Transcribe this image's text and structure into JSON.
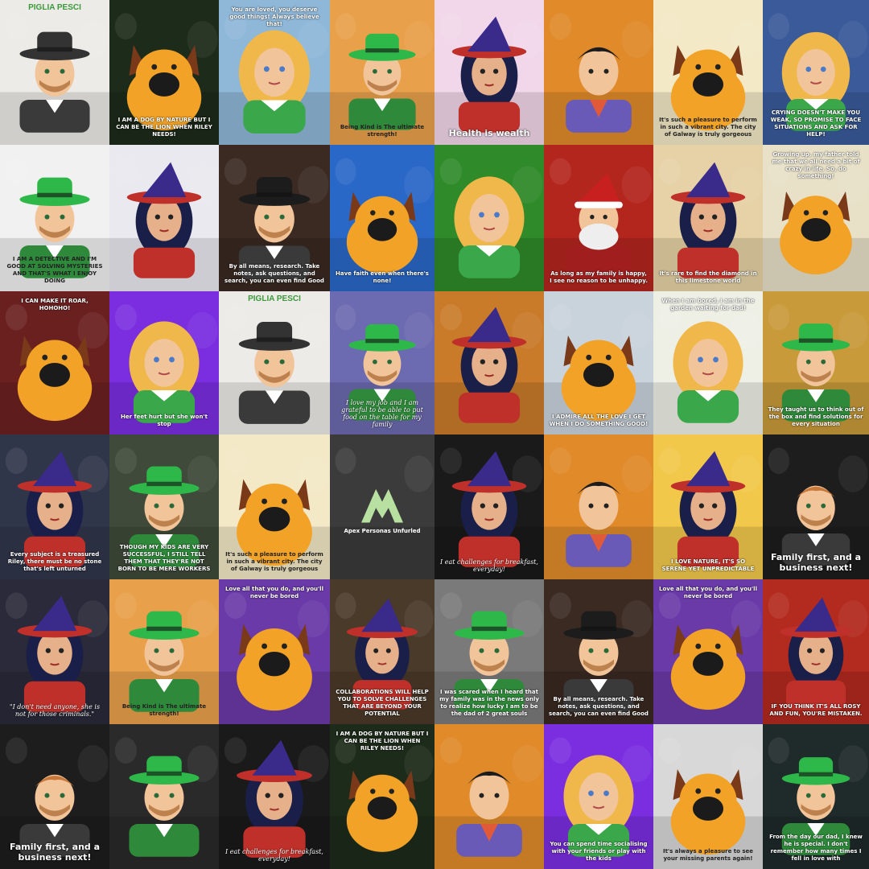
{
  "tiles": [
    {
      "kind": "man",
      "hat": "#333333",
      "bg": "#ecebe7",
      "banner": "PIGLIA PESCI",
      "caption": "",
      "capStyle": ""
    },
    {
      "kind": "dog",
      "bg": "#1d2b1a",
      "caption": "I AM A DOG BY NATURE BUT I CAN BE THE LION WHEN RILEY NEEDS!",
      "capStyle": ""
    },
    {
      "kind": "girl",
      "bg": "#8fb7d8",
      "caption": "You are loved, you deserve good things! Always believe that!",
      "capStyle": "top"
    },
    {
      "kind": "man",
      "hat": "#2fb84a",
      "bg": "#e9a04a",
      "caption": "Being Kind is The ultimate strength!",
      "capStyle": "dark"
    },
    {
      "kind": "witch",
      "bg": "#f2d7ea",
      "caption": "Health is wealth",
      "capStyle": "big"
    },
    {
      "kind": "boy",
      "bg": "#e08a2a",
      "caption": "",
      "capStyle": ""
    },
    {
      "kind": "dog",
      "bg": "#f3e9c6",
      "caption": "It's such a pleasure to perform in such a vibrant city. The city of Galway is truly gorgeous",
      "capStyle": "dark"
    },
    {
      "kind": "girl",
      "bg": "#3a5a9a",
      "caption": "CRYING DOESN'T MAKE YOU WEAK, SO PROMISE TO FACE SITUATIONS AND ASK FOR HELP!",
      "capStyle": ""
    },
    {
      "kind": "man",
      "hat": "#2fb84a",
      "bg": "#f1f1f1",
      "caption": "I AM A DETECTIVE AND I'M GOOD AT SOLVING MYSTERIES AND THAT'S WHAT I ENJOY DOING",
      "capStyle": "dark"
    },
    {
      "kind": "witch",
      "bg": "#e9e9ef",
      "caption": "",
      "capStyle": ""
    },
    {
      "kind": "man",
      "hat": "#1c1c1c",
      "bg": "#3a2a22",
      "caption": "By all means, research. Take notes, ask questions, and search, you can even find Good",
      "capStyle": ""
    },
    {
      "kind": "dog",
      "bg": "#2a68c8",
      "caption": "Have faith even when there's none!",
      "capStyle": ""
    },
    {
      "kind": "girl",
      "bg": "#2f8a2a",
      "caption": "",
      "capStyle": ""
    },
    {
      "kind": "santa",
      "bg": "#b3261e",
      "caption": "As long as my family is happy, I see no reason to be unhappy.",
      "capStyle": ""
    },
    {
      "kind": "witch",
      "bg": "#e6d2a6",
      "caption": "It's rare to find the diamond in this limestone world",
      "capStyle": ""
    },
    {
      "kind": "dog",
      "bg": "#e8e1c8",
      "caption": "Growing up, my father told me that we all need a bit of crazy in life. So, do something!",
      "capStyle": "top"
    },
    {
      "kind": "dog",
      "bg": "#6b2020",
      "caption": "I CAN MAKE IT ROAR, HOHOHO!",
      "capStyle": "top"
    },
    {
      "kind": "girl",
      "bg": "#7a2ee0",
      "caption": "Her feet hurt but she won't stop",
      "capStyle": ""
    },
    {
      "kind": "man",
      "hat": "#333333",
      "bg": "#ecebe7",
      "banner": "PIGLIA PESCI",
      "caption": "",
      "capStyle": ""
    },
    {
      "kind": "man",
      "hat": "#2fb84a",
      "bg": "#6c6ab0",
      "caption": "I love my job and I am grateful to be able to put food on the table for my family",
      "capStyle": "script"
    },
    {
      "kind": "witch",
      "bg": "#c97b2a",
      "caption": "",
      "capStyle": ""
    },
    {
      "kind": "dog",
      "bg": "#c9d3dc",
      "caption": "I ADMIRE ALL THE LOVE I GET WHEN I DO SOMETHING GOOD!",
      "capStyle": ""
    },
    {
      "kind": "girl",
      "bg": "#eef0e6",
      "caption": "When I am bored, I am in the garden waiting for dad!",
      "capStyle": "top"
    },
    {
      "kind": "man",
      "hat": "#2fb84a",
      "bg": "#c89a3a",
      "caption": "They taught us to think out of the box and find solutions for every situation",
      "capStyle": ""
    },
    {
      "kind": "witch",
      "bg": "#30364a",
      "caption": "Every subject is a treasured Riley, there must be no stone that's left unturned",
      "capStyle": ""
    },
    {
      "kind": "man",
      "hat": "#2fb84a",
      "bg": "#3f4a3a",
      "caption": "THOUGH MY KIDS ARE VERY SUCCESSFUL, I STILL TELL THEM THAT THEY'RE NOT BORN TO BE MERE WORKERS",
      "capStyle": ""
    },
    {
      "kind": "dog",
      "bg": "#f3e9c6",
      "caption": "It's such a pleasure to perform in such a vibrant city. The city of Galway is truly gorgeous",
      "capStyle": "dark"
    },
    {
      "kind": "logo",
      "bg": "#3b3b3b",
      "title": "Apex Personas Unfurled",
      "caption": "",
      "capStyle": ""
    },
    {
      "kind": "witch",
      "bg": "#1a1a1a",
      "caption": "I eat challenges for breakfast, everyday!",
      "capStyle": "script"
    },
    {
      "kind": "boy",
      "bg": "#e08a2a",
      "caption": "",
      "capStyle": ""
    },
    {
      "kind": "witch",
      "bg": "#f2c84a",
      "caption": "I LOVE NATURE, IT'S SO SERENE YET UNPREDICTABLE",
      "capStyle": ""
    },
    {
      "kind": "man",
      "hat": "none",
      "bg": "#1d1d1d",
      "caption": "Family first, and a business next!",
      "capStyle": "big"
    },
    {
      "kind": "witch",
      "bg": "#2a2a3a",
      "caption": "\"I don't need anyone, she is not for those criminals.\"",
      "capStyle": "script"
    },
    {
      "kind": "man",
      "hat": "#2fb84a",
      "bg": "#e9a04a",
      "caption": "Being Kind is The ultimate strength!",
      "capStyle": "dark"
    },
    {
      "kind": "dog",
      "bg": "#6a3aa8",
      "caption": "Love all that you do, and you'll never be bored",
      "capStyle": "top"
    },
    {
      "kind": "witch",
      "bg": "#4a3a2a",
      "caption": "COLLABORATIONS WILL HELP YOU TO SOLVE CHALLENGES THAT ARE BEYOND YOUR POTENTIAL",
      "capStyle": ""
    },
    {
      "kind": "man",
      "hat": "#2fb84a",
      "bg": "#7a7a7a",
      "caption": "I was scared when I heard that my family was in the news only to realize how lucky I am to be the dad of 2 great souls",
      "capStyle": ""
    },
    {
      "kind": "man",
      "hat": "#1c1c1c",
      "bg": "#3a2a22",
      "caption": "By all means, research. Take notes, ask questions, and search, you can even find Good",
      "capStyle": ""
    },
    {
      "kind": "dog",
      "bg": "#6a3aa8",
      "caption": "Love all that you do, and you'll never be bored",
      "capStyle": "top"
    },
    {
      "kind": "witch",
      "bg": "#b32a1e",
      "caption": "IF YOU THINK IT'S ALL ROSY AND FUN, YOU'RE MISTAKEN.",
      "capStyle": ""
    },
    {
      "kind": "man",
      "hat": "none",
      "bg": "#1d1d1d",
      "caption": "Family first, and a business next!",
      "capStyle": "big"
    },
    {
      "kind": "man",
      "hat": "#2fb84a",
      "bg": "#2a2a2a",
      "caption": "",
      "capStyle": ""
    },
    {
      "kind": "witch",
      "bg": "#1a1a1a",
      "caption": "I eat challenges for breakfast, everyday!",
      "capStyle": "script"
    },
    {
      "kind": "dog",
      "bg": "#1d2b1a",
      "caption": "I AM A DOG BY NATURE BUT I CAN BE THE LION WHEN RILEY NEEDS!",
      "capStyle": "top"
    },
    {
      "kind": "boy",
      "bg": "#e08a2a",
      "caption": "",
      "capStyle": ""
    },
    {
      "kind": "girl",
      "bg": "#7a2ee0",
      "caption": "You can spend time socialising with your friends or play with the kids",
      "capStyle": ""
    },
    {
      "kind": "dog",
      "bg": "#d8d8d8",
      "caption": "It's always a pleasure to see your missing parents again!",
      "capStyle": "dark"
    },
    {
      "kind": "man",
      "hat": "#2fb84a",
      "bg": "#1f2a2a",
      "caption": "From the day our dad, I knew he is special. I don't remember how many times I fell in love with",
      "capStyle": ""
    }
  ],
  "colors": {
    "skin": "#f1c49a",
    "dogFur": "#f2a227",
    "hairBlonde": "#f0b84a",
    "witchHat": "#3a2a8a",
    "witchBrim": "#c0302a",
    "greenShirt": "#2e8a3a",
    "redCoat": "#c0302a",
    "suit": "#3a3a3a"
  }
}
